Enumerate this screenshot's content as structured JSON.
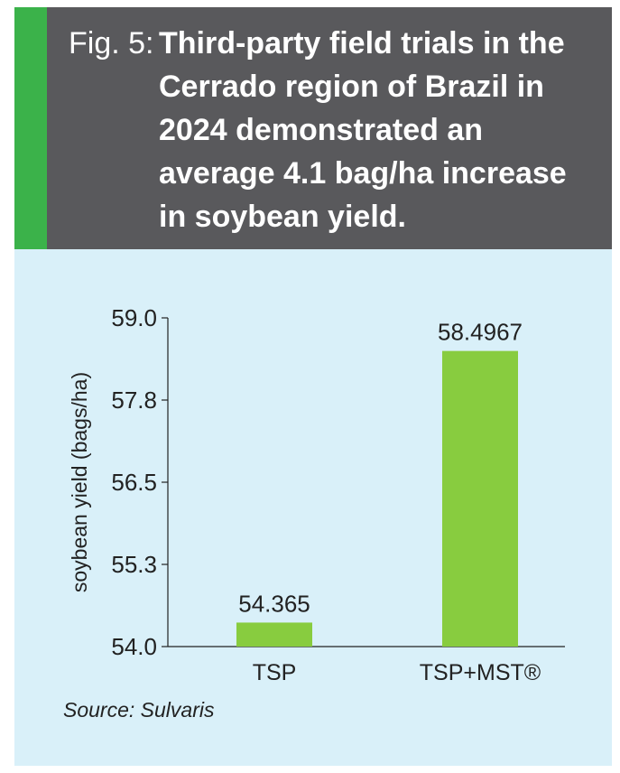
{
  "header": {
    "fig_label": "Fig. 5:",
    "title": "Third-party field trials in the Cerrado region of Brazil in 2024 demonstrated an average 4.1 bag/ha increase in soybean yield."
  },
  "source": "Source: Sulvaris",
  "colors": {
    "header_bg": "#59595c",
    "accent": "#3bb24a",
    "panel_bg": "#d9f0f9",
    "bar": "#88cc3f"
  },
  "chart_data": {
    "type": "bar",
    "categories": [
      "TSP",
      "TSP+MST®"
    ],
    "values": [
      54.365,
      58.4967
    ],
    "value_labels": [
      "54.365",
      "58.4967"
    ],
    "xlabel": "",
    "ylabel": "soybean yield (bags/ha)",
    "ylim": [
      54.0,
      59.0
    ],
    "yticks": [
      54.0,
      55.25,
      56.5,
      57.75,
      59.0
    ],
    "ytick_labels": [
      "54.0",
      "55.3",
      "56.5",
      "57.8",
      "59.0"
    ],
    "grid": false,
    "legend": "none"
  }
}
